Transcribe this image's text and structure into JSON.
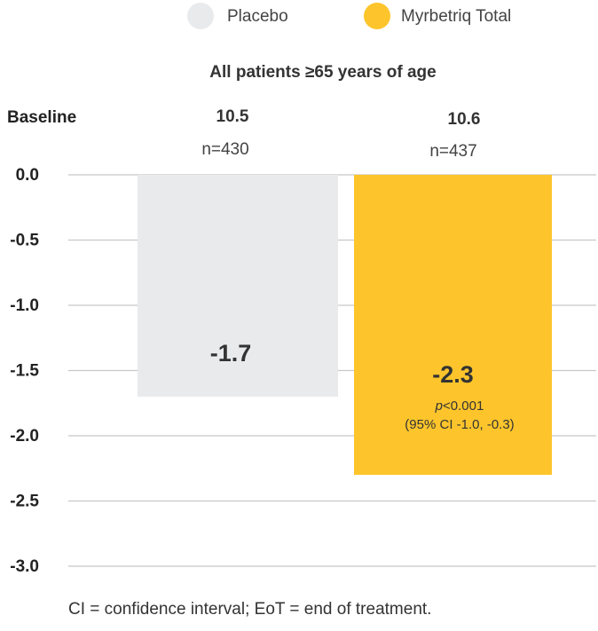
{
  "legend": [
    {
      "label": "Placebo",
      "color": "#e9eaec"
    },
    {
      "label": "Myrbetriq Total",
      "color": "#fdc52b"
    }
  ],
  "chart_data": {
    "type": "bar",
    "title": "All patients ≥65 years of age",
    "categories": [
      "Placebo",
      "Myrbetriq Total"
    ],
    "values": [
      -1.7,
      -2.3
    ],
    "value_labels": [
      "-1.7",
      "-2.3"
    ],
    "baseline_label": "Baseline",
    "baseline_values": [
      "10.5",
      "10.6"
    ],
    "n_labels": [
      "n=430",
      "n=437"
    ],
    "annotation": {
      "p_italic": "p",
      "p_rest": "<0.001",
      "ci": "(95% CI -1.0, -0.3)"
    },
    "yticks": [
      "0.0",
      "-0.5",
      "-1.0",
      "-1.5",
      "-2.0",
      "-2.5",
      "-3.0"
    ],
    "ylim": [
      -3.0,
      0.0
    ],
    "grid": true,
    "colors": [
      "#e9eaec",
      "#fdc52b"
    ]
  },
  "footnote": "CI = confidence interval; EoT = end of treatment."
}
